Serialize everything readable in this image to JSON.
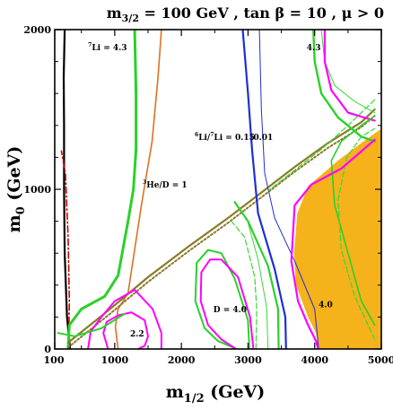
{
  "title": {
    "m32": "m",
    "m32_sub": "3/2",
    "rest": " = 100 GeV , tan ",
    "beta": "β",
    "rest2": " = 10 ,  ",
    "mu": "μ",
    "rest3": " > 0"
  },
  "xlabel": {
    "main": "m",
    "sub": "1/2",
    "unit": " (GeV)"
  },
  "ylabel": {
    "main": "m",
    "sub": "0",
    "unit": " (GeV)"
  },
  "colors": {
    "frame": "#000000",
    "excluded_region": "#f5b21b",
    "lithium7": "#2ad12a",
    "he3": "#e07020",
    "lithium6": "#1f2fd6",
    "deuterium": "#ff00ff",
    "dark_stau": "#8a7a2a",
    "li_light": "#36d836",
    "dashdot": "#cc0000",
    "black_boundary": "#000000"
  },
  "chart_data": {
    "type": "line",
    "xlim": [
      100,
      5000
    ],
    "ylim": [
      0,
      2000
    ],
    "x_ticks": [
      {
        "value": 100,
        "label": "100"
      },
      {
        "value": 1000,
        "label": "1000"
      },
      {
        "value": 2000,
        "label": "2000"
      },
      {
        "value": 3000,
        "label": "3000"
      },
      {
        "value": 4000,
        "label": "4000"
      },
      {
        "value": 5000,
        "label": "5000"
      }
    ],
    "y_ticks": [
      {
        "value": 0,
        "label": "0"
      },
      {
        "value": 1000,
        "label": "1000"
      },
      {
        "value": 2000,
        "label": "2000"
      }
    ],
    "annotations": [
      {
        "text": "4.3",
        "sup": "7",
        "prefix": "Li = ",
        "x": 600,
        "y": 1870
      },
      {
        "text": "1",
        "sup": "3",
        "prefix": "He/D = ",
        "x": 1420,
        "y": 1010
      },
      {
        "text": "0.15",
        "sup": "6",
        "prefix": "Li/",
        "sup2": "7",
        "prefix2": "Li = ",
        "x": 2200,
        "y": 1310
      },
      {
        "text": "0.01",
        "x": 3080,
        "y": 1310
      },
      {
        "text": "4.3",
        "x": 3880,
        "y": 1870
      },
      {
        "text": "D = 4.0",
        "x": 2480,
        "y": 230
      },
      {
        "text": "2.2",
        "x": 1230,
        "y": 80
      },
      {
        "text": "4.0",
        "x": 4060,
        "y": 260
      }
    ],
    "series": [
      {
        "key": "black_boundary",
        "style": "solid",
        "width": 2.2,
        "points": [
          [
            330,
            0
          ],
          [
            285,
            200
          ],
          [
            250,
            600
          ],
          [
            240,
            1000
          ],
          [
            240,
            1400
          ],
          [
            235,
            1700
          ],
          [
            250,
            2000
          ]
        ]
      },
      {
        "key": "dashdot",
        "style": "dashdot",
        "width": 1.6,
        "points": [
          [
            310,
            80
          ],
          [
            320,
            300
          ],
          [
            300,
            700
          ],
          [
            260,
            1100
          ],
          [
            200,
            1240
          ]
        ]
      },
      {
        "key": "lithium7",
        "style": "solid",
        "width": 3,
        "points": [
          [
            300,
            0
          ],
          [
            320,
            150
          ],
          [
            500,
            250
          ],
          [
            850,
            330
          ],
          [
            1050,
            460
          ],
          [
            1200,
            800
          ],
          [
            1280,
            1000
          ],
          [
            1320,
            1250
          ],
          [
            1320,
            1600
          ],
          [
            1300,
            2000
          ]
        ]
      },
      {
        "key": "he3",
        "style": "solid",
        "width": 1.6,
        "points": [
          [
            1050,
            0
          ],
          [
            1010,
            140
          ],
          [
            1050,
            250
          ],
          [
            1200,
            350
          ],
          [
            1400,
            900
          ],
          [
            1560,
            1300
          ],
          [
            1650,
            1700
          ],
          [
            1700,
            2000
          ]
        ]
      },
      {
        "key": "dark_stau",
        "style": "solid",
        "width": 2.2,
        "points": [
          [
            300,
            40
          ],
          [
            900,
            240
          ],
          [
            1500,
            450
          ],
          [
            2100,
            640
          ],
          [
            2700,
            820
          ],
          [
            3200,
            980
          ],
          [
            3700,
            1140
          ],
          [
            4200,
            1290
          ],
          [
            4700,
            1420
          ],
          [
            4900,
            1500
          ]
        ]
      },
      {
        "key": "dark_stau",
        "style": "dotted",
        "width": 2,
        "points": [
          [
            300,
            10
          ],
          [
            900,
            210
          ],
          [
            1500,
            420
          ],
          [
            2100,
            610
          ],
          [
            2700,
            790
          ],
          [
            3200,
            950
          ],
          [
            3700,
            1110
          ],
          [
            4200,
            1260
          ],
          [
            4700,
            1390
          ],
          [
            4900,
            1460
          ]
        ]
      },
      {
        "key": "lithium6",
        "style": "solid",
        "width": 2.2,
        "points": [
          [
            3570,
            0
          ],
          [
            3560,
            200
          ],
          [
            3400,
            500
          ],
          [
            3150,
            850
          ],
          [
            3060,
            1250
          ],
          [
            3000,
            1600
          ],
          [
            2920,
            2000
          ]
        ]
      },
      {
        "key": "lithium6",
        "style": "solid",
        "width": 1,
        "points": [
          [
            4060,
            0
          ],
          [
            4000,
            250
          ],
          [
            3700,
            550
          ],
          [
            3400,
            820
          ],
          [
            3250,
            1100
          ],
          [
            3200,
            1500
          ],
          [
            3170,
            2000
          ]
        ]
      },
      {
        "key": "lithium7",
        "style": "solid",
        "width": 2.4,
        "points": [
          [
            3980,
            2000
          ],
          [
            4000,
            1800
          ],
          [
            4100,
            1600
          ],
          [
            4350,
            1450
          ],
          [
            4700,
            1330
          ],
          [
            4900,
            1300
          ]
        ]
      },
      {
        "key": "li_light",
        "style": "solid",
        "width": 1,
        "points": [
          [
            4100,
            2000
          ],
          [
            4150,
            1800
          ],
          [
            4300,
            1650
          ],
          [
            4600,
            1550
          ],
          [
            4900,
            1480
          ]
        ]
      },
      {
        "key": "deuterium",
        "style": "solid",
        "width": 2.2,
        "points": [
          [
            4150,
            2000
          ],
          [
            4150,
            1800
          ],
          [
            4250,
            1620
          ],
          [
            4500,
            1480
          ],
          [
            4900,
            1430
          ]
        ]
      },
      {
        "key": "li_light",
        "style": "dashed",
        "width": 1.2,
        "points": [
          [
            4900,
            1560
          ],
          [
            4500,
            1400
          ],
          [
            4100,
            1250
          ],
          [
            3700,
            1120
          ],
          [
            3300,
            990
          ]
        ]
      },
      {
        "key": "lithium7",
        "style": "solid",
        "width": 1.6,
        "points": [
          [
            4900,
            1460
          ],
          [
            4700,
            1400
          ],
          [
            4400,
            1300
          ],
          [
            4250,
            1180
          ],
          [
            4300,
            900
          ],
          [
            4500,
            600
          ],
          [
            4700,
            300
          ],
          [
            4900,
            150
          ]
        ]
      },
      {
        "key": "li_light",
        "style": "dashed",
        "width": 1.2,
        "points": [
          [
            4900,
            60
          ],
          [
            4600,
            330
          ],
          [
            4400,
            620
          ],
          [
            4350,
            930
          ],
          [
            4480,
            1200
          ],
          [
            4700,
            1330
          ],
          [
            4900,
            1380
          ]
        ]
      },
      {
        "key": "deuterium",
        "style": "solid",
        "width": 2.2,
        "points": [
          [
            4900,
            1310
          ],
          [
            4400,
            1130
          ],
          [
            3950,
            1030
          ],
          [
            3700,
            900
          ],
          [
            3650,
            550
          ],
          [
            3750,
            300
          ],
          [
            3900,
            150
          ],
          [
            4020,
            50
          ],
          [
            4050,
            0
          ]
        ]
      },
      {
        "key": "lithium7",
        "style": "solid",
        "width": 2.2,
        "points": [
          [
            3460,
            0
          ],
          [
            3450,
            250
          ],
          [
            3300,
            520
          ],
          [
            3000,
            800
          ],
          [
            2800,
            920
          ]
        ]
      },
      {
        "key": "li_light",
        "style": "solid",
        "width": 1,
        "points": [
          [
            3300,
            0
          ],
          [
            3280,
            260
          ],
          [
            3150,
            560
          ],
          [
            2980,
            820
          ]
        ]
      },
      {
        "key": "li_light",
        "style": "dashed",
        "width": 1.2,
        "points": [
          [
            3120,
            0
          ],
          [
            3130,
            250
          ],
          [
            3100,
            450
          ],
          [
            2950,
            700
          ],
          [
            2750,
            800
          ]
        ]
      },
      {
        "key": "lithium7",
        "style": "solid",
        "width": 2,
        "points": [
          [
            3020,
            0
          ],
          [
            3000,
            180
          ],
          [
            2800,
            440
          ],
          [
            2600,
            600
          ],
          [
            2400,
            620
          ],
          [
            2230,
            540
          ],
          [
            2210,
            300
          ],
          [
            2350,
            130
          ],
          [
            2550,
            50
          ],
          [
            2830,
            0
          ]
        ]
      },
      {
        "key": "deuterium",
        "style": "solid",
        "width": 2,
        "points": [
          [
            3080,
            0
          ],
          [
            3030,
            200
          ],
          [
            2850,
            450
          ],
          [
            2600,
            560
          ],
          [
            2430,
            560
          ],
          [
            2300,
            480
          ],
          [
            2290,
            300
          ],
          [
            2400,
            150
          ],
          [
            2600,
            60
          ],
          [
            2820,
            0
          ]
        ]
      },
      {
        "key": "deuterium",
        "style": "solid",
        "width": 2,
        "points": [
          [
            900,
            0
          ],
          [
            830,
            100
          ],
          [
            880,
            170
          ],
          [
            1050,
            210
          ],
          [
            1250,
            230
          ],
          [
            1450,
            180
          ],
          [
            1500,
            80
          ],
          [
            1450,
            20
          ],
          [
            1350,
            0
          ]
        ]
      },
      {
        "key": "deuterium",
        "style": "solid",
        "width": 2,
        "points": [
          [
            600,
            0
          ],
          [
            640,
            110
          ],
          [
            800,
            200
          ],
          [
            1000,
            300
          ],
          [
            1300,
            370
          ],
          [
            1570,
            250
          ],
          [
            1700,
            100
          ],
          [
            1700,
            0
          ]
        ]
      },
      {
        "key": "lithium7",
        "style": "solid",
        "width": 2,
        "points": [
          [
            150,
            100
          ],
          [
            400,
            80
          ],
          [
            800,
            130
          ],
          [
            1150,
            220
          ]
        ]
      }
    ],
    "excluded_region": {
      "points": [
        [
          5000,
          0
        ],
        [
          4050,
          0
        ],
        [
          4020,
          100
        ],
        [
          3900,
          200
        ],
        [
          3720,
          400
        ],
        [
          3690,
          600
        ],
        [
          3740,
          850
        ],
        [
          3900,
          1020
        ],
        [
          4350,
          1180
        ],
        [
          4700,
          1290
        ],
        [
          5000,
          1380
        ]
      ]
    }
  }
}
